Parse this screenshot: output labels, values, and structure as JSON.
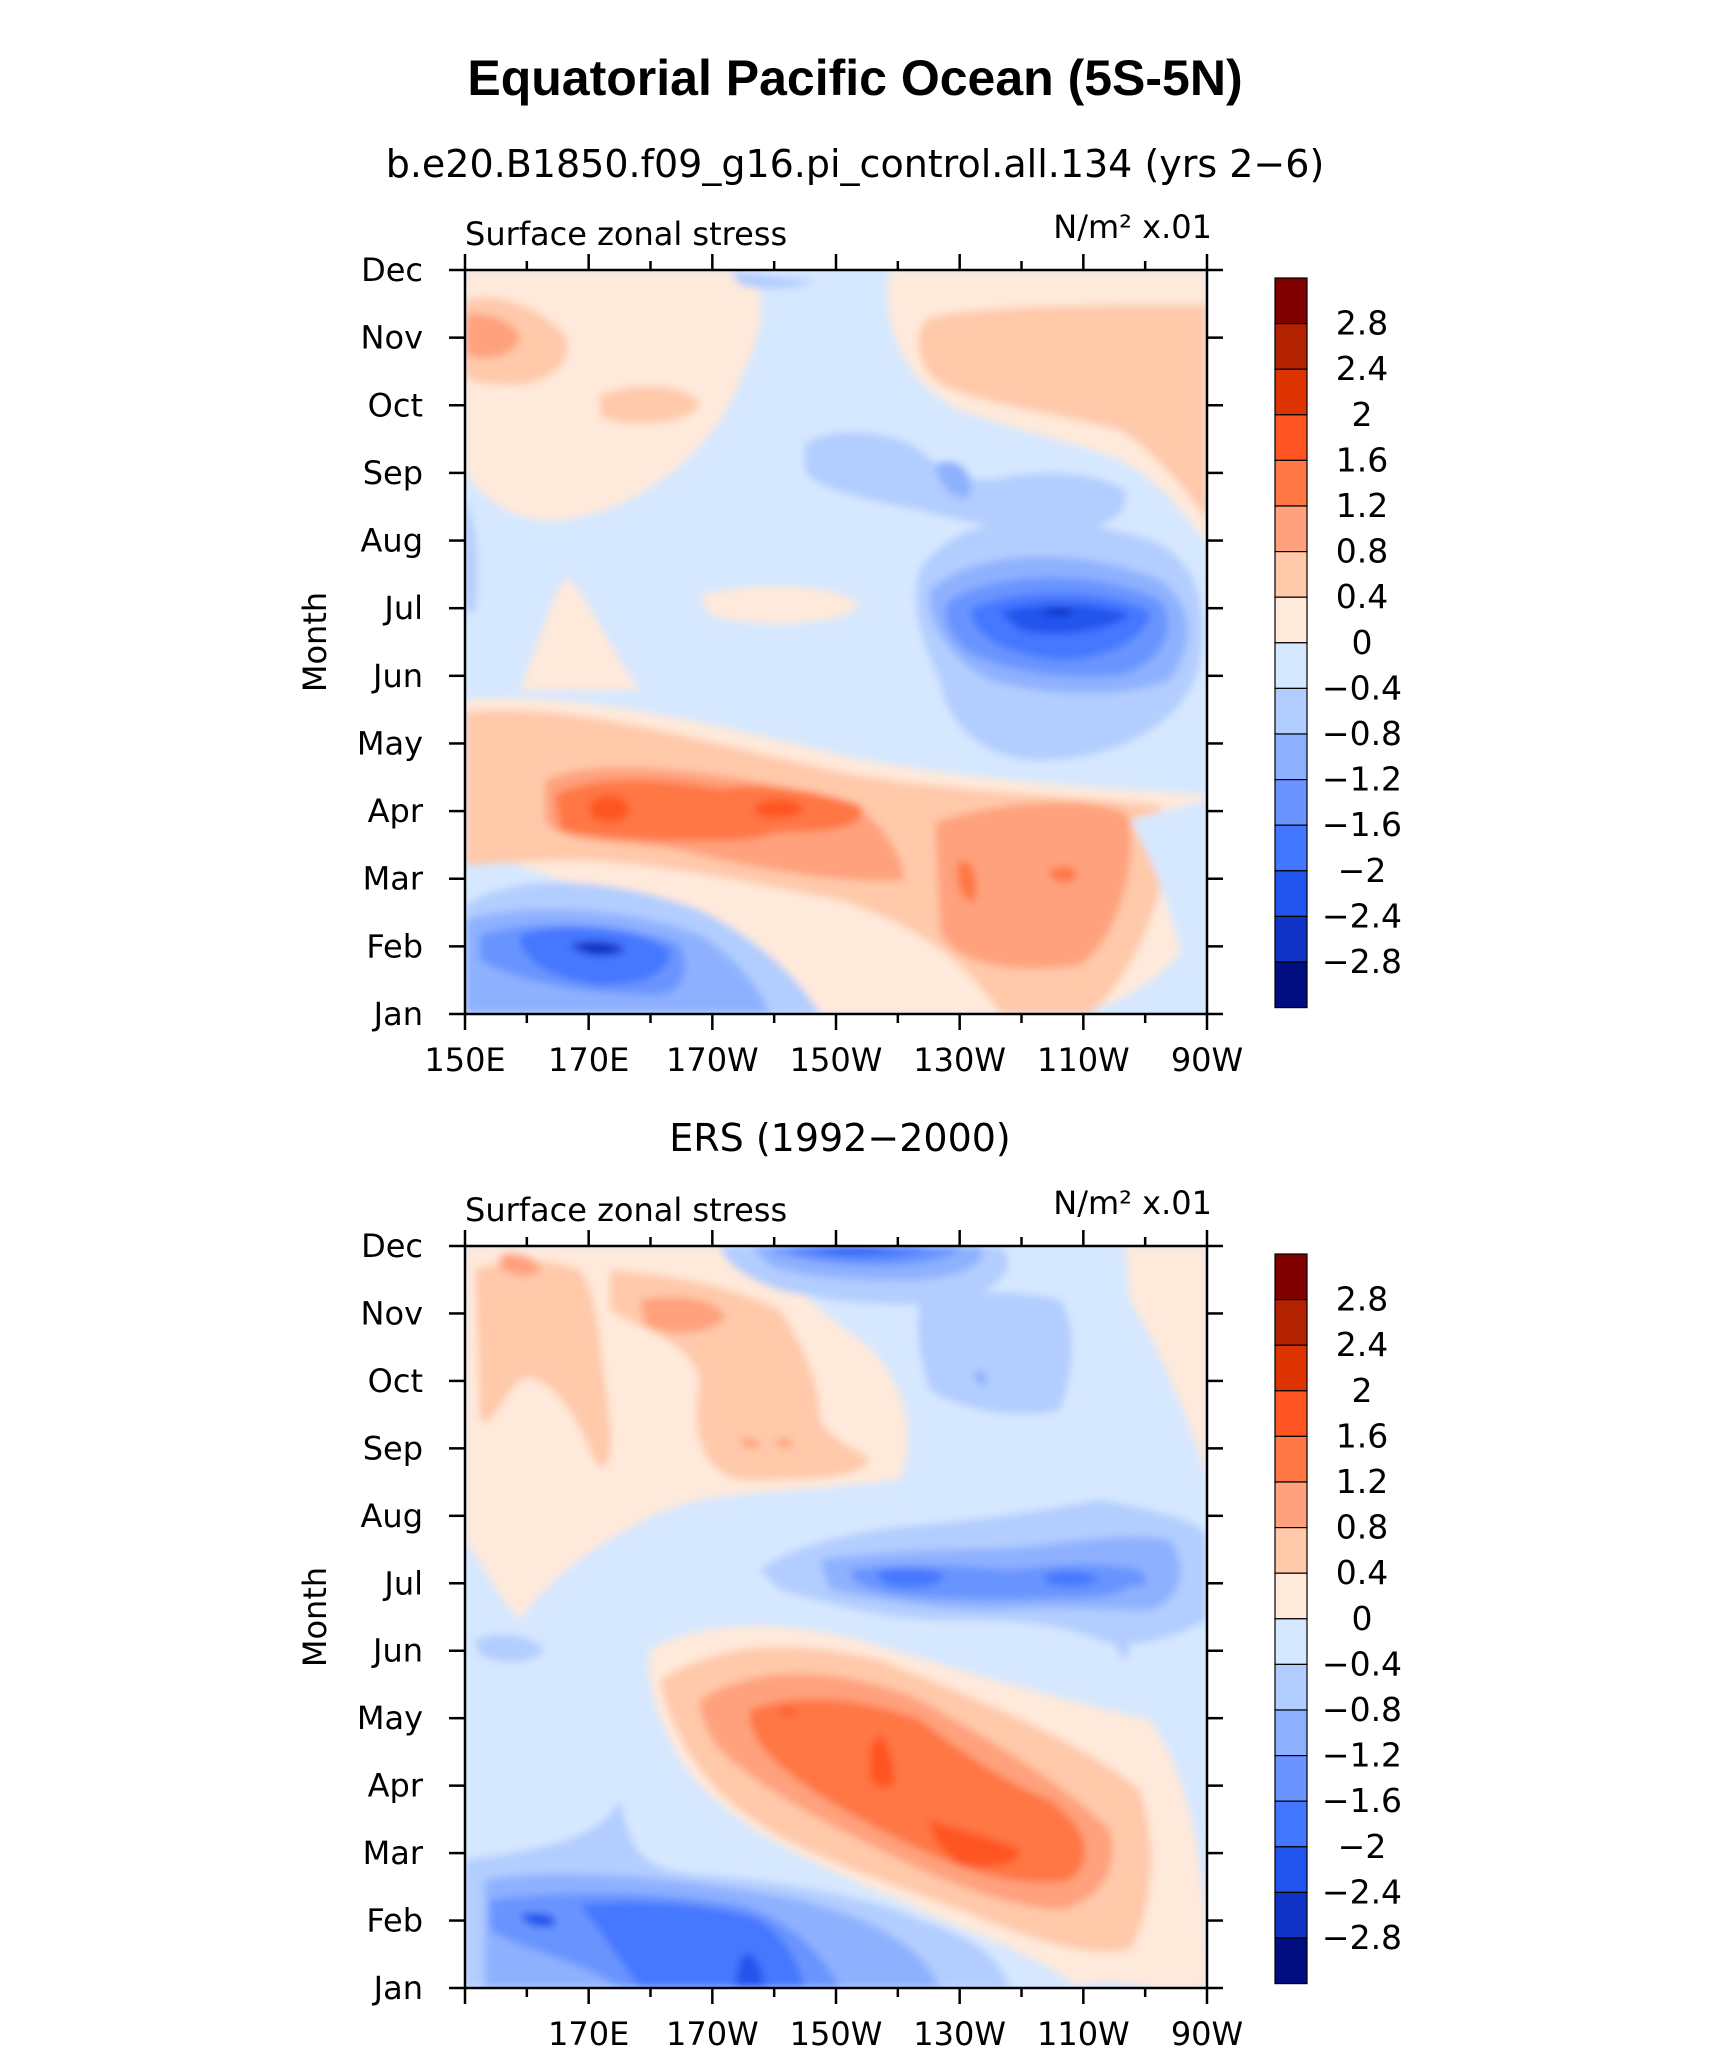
{
  "figure": {
    "title": "Equatorial Pacific Ocean (5S-5N)",
    "colorbar_labels": [
      "2.8",
      "2.4",
      "2",
      "1.6",
      "1.2",
      "0.8",
      "0.4",
      "0",
      "−0.4",
      "−0.8",
      "−1.2",
      "−1.6",
      "−2",
      "−2.4",
      "−2.8"
    ],
    "colorbar_colors": [
      "#800000",
      "#b22200",
      "#dd3300",
      "#ff5522",
      "#ff7744",
      "#ffa17d",
      "#ffc9aa",
      "#ffe9da",
      "#d6e8ff",
      "#b2cdff",
      "#8eb1ff",
      "#6994ff",
      "#4477ff",
      "#2255ee",
      "#0f33c4",
      "#000e80"
    ]
  },
  "chart_data": [
    {
      "type": "heatmap",
      "subtitle": "b.e20.B1850.f09_g16.pi_control.all.134 (yrs 2−6)",
      "variable_label": "Surface zonal stress",
      "units_label": "N/m² x.01",
      "ylabel": "Month",
      "y_categories": [
        "Jan",
        "Feb",
        "Mar",
        "Apr",
        "May",
        "Jun",
        "Jul",
        "Aug",
        "Sep",
        "Oct",
        "Nov",
        "Dec"
      ],
      "x_tick_labels": [
        "150E",
        "170E",
        "170W",
        "150W",
        "130W",
        "110W",
        "90W"
      ],
      "xlim_deg_east": [
        150,
        270
      ],
      "contour_levels": [
        -2.8,
        -2.4,
        -2,
        -1.6,
        -1.2,
        -0.8,
        -0.4,
        0,
        0.4,
        0.8,
        1.2,
        1.6,
        2,
        2.4,
        2.8
      ],
      "features": [
        {
          "x": 170,
          "month": 2.0,
          "value": -2.4
        },
        {
          "x": 168,
          "month": 4.0,
          "value": 1.7
        },
        {
          "x": 201,
          "month": 4.0,
          "value": 1.7
        },
        {
          "x": 227,
          "month": 3.2,
          "value": 1.5
        },
        {
          "x": 245,
          "month": 3.2,
          "value": 1.5
        },
        {
          "x": 245,
          "month": 7.0,
          "value": -2.5
        },
        {
          "x": 228,
          "month": 9.0,
          "value": -1.2
        },
        {
          "x": 153,
          "month": 11.0,
          "value": 1.0
        },
        {
          "x": 250,
          "month": 10.5,
          "value": 0.6
        }
      ]
    },
    {
      "type": "heatmap",
      "subtitle": "ERS (1992−2000)",
      "variable_label": "Surface zonal stress",
      "units_label": "N/m² x.01",
      "ylabel": "Month",
      "y_categories": [
        "Jan",
        "Feb",
        "Mar",
        "Apr",
        "May",
        "Jun",
        "Jul",
        "Aug",
        "Sep",
        "Oct",
        "Nov",
        "Dec"
      ],
      "x_tick_labels": [
        "170E",
        "170W",
        "150W",
        "130W",
        "110W",
        "90W"
      ],
      "xlim_deg_east": [
        150,
        270
      ],
      "contour_levels": [
        -2.8,
        -2.4,
        -2,
        -1.6,
        -1.2,
        -0.8,
        -0.4,
        0,
        0.4,
        0.8,
        1.2,
        1.6,
        2,
        2.4,
        2.8
      ],
      "features": [
        {
          "x": 195,
          "month": 1.5,
          "value": -2.2
        },
        {
          "x": 160,
          "month": 2.0,
          "value": -1.6
        },
        {
          "x": 233,
          "month": 3.0,
          "value": 2.0
        },
        {
          "x": 210,
          "month": 4.3,
          "value": 1.8
        },
        {
          "x": 218,
          "month": 7.0,
          "value": -1.7
        },
        {
          "x": 249,
          "month": 7.0,
          "value": -1.7
        },
        {
          "x": 212,
          "month": 12.0,
          "value": -2.0
        },
        {
          "x": 180,
          "month": 11.0,
          "value": 1.0
        }
      ]
    }
  ]
}
